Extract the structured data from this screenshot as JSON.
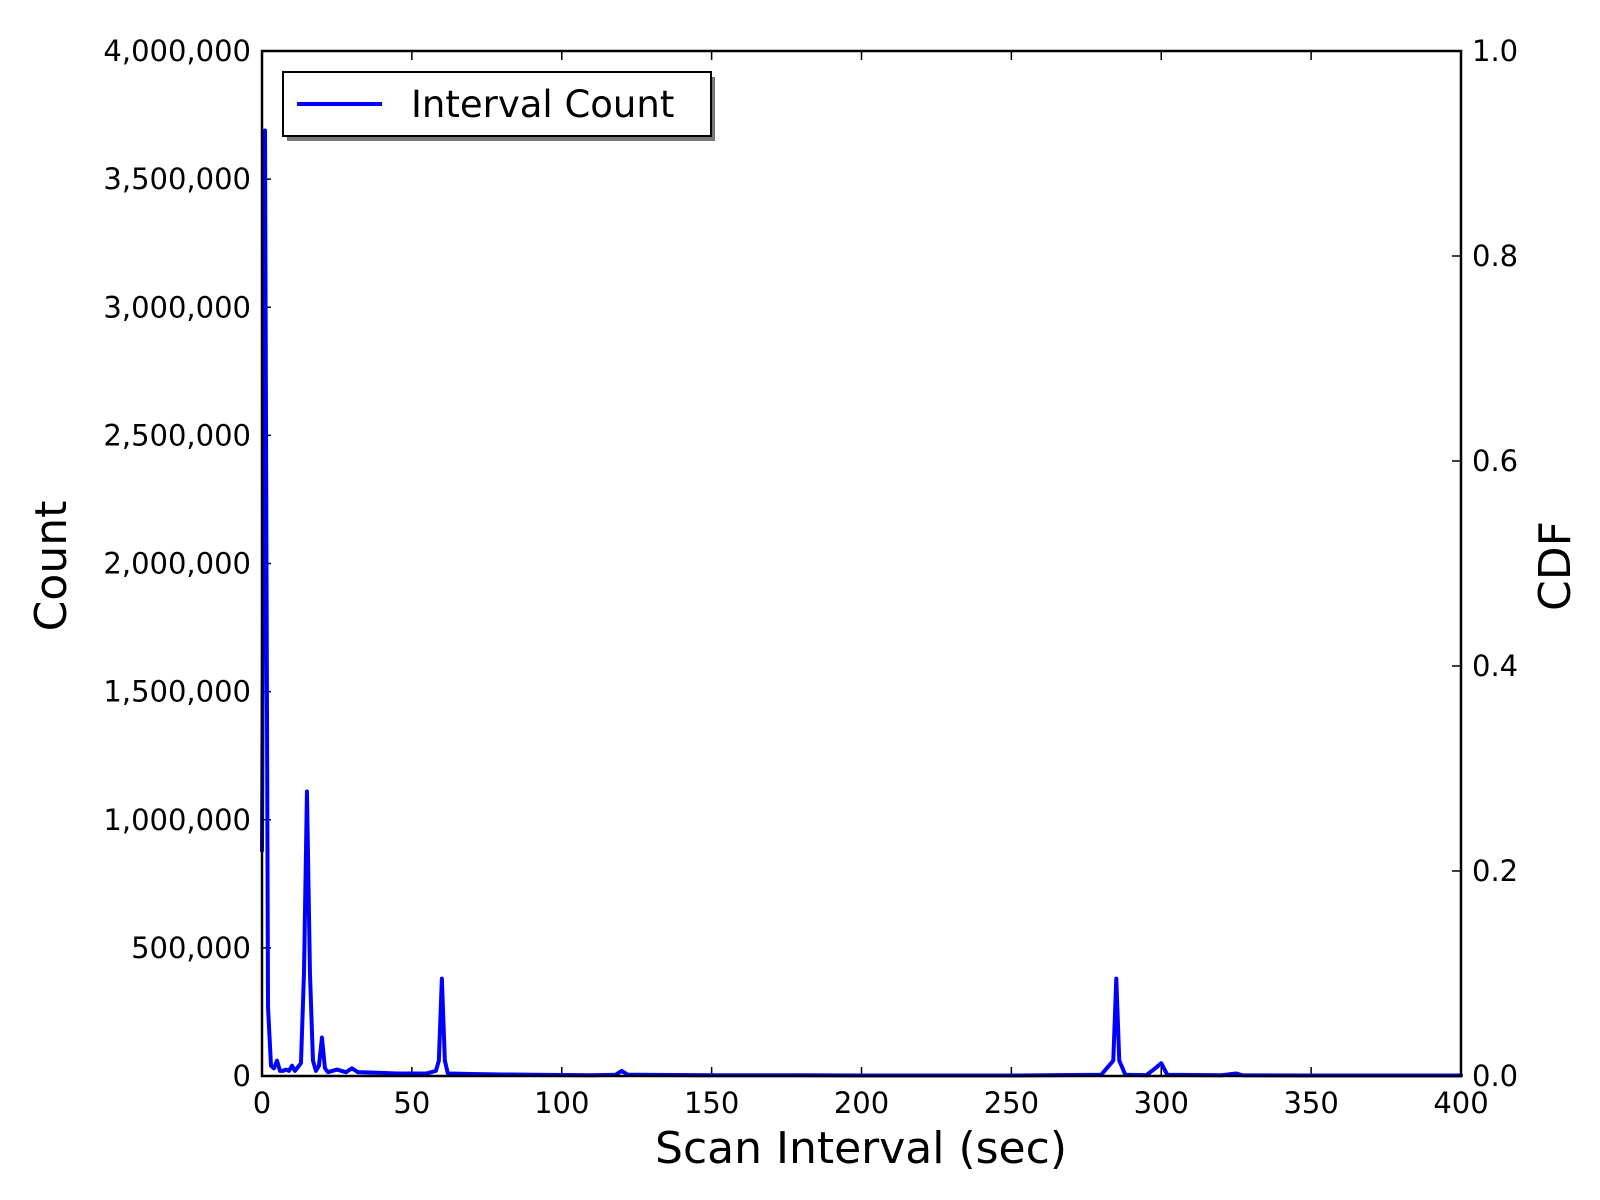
{
  "chart_data": {
    "type": "line",
    "title": "",
    "xlabel": "Scan Interval (sec)",
    "ylabel": "Count",
    "y2label": "CDF",
    "xlim": [
      0,
      400
    ],
    "ylim": [
      0,
      4000000
    ],
    "y2lim": [
      0.0,
      1.0
    ],
    "x_ticks": [
      "0",
      "50",
      "100",
      "150",
      "200",
      "250",
      "300",
      "350",
      "400"
    ],
    "y_ticks": [
      "0",
      "500,000",
      "1,000,000",
      "1,500,000",
      "2,000,000",
      "2,500,000",
      "3,000,000",
      "3,500,000",
      "4,000,000"
    ],
    "y2_ticks": [
      "0.0",
      "0.2",
      "0.4",
      "0.6",
      "0.8",
      "1.0"
    ],
    "grid": false,
    "legend": {
      "position": "top-left",
      "entries": [
        {
          "label": "Interval Count",
          "color": "#0000ff"
        }
      ]
    },
    "series": [
      {
        "name": "Interval Count",
        "color": "#0000ff",
        "axis": "left",
        "points": [
          [
            0,
            880000
          ],
          [
            1,
            3690000
          ],
          [
            2,
            270000
          ],
          [
            3,
            40000
          ],
          [
            4,
            30000
          ],
          [
            5,
            60000
          ],
          [
            6,
            20000
          ],
          [
            7,
            20000
          ],
          [
            8,
            25000
          ],
          [
            9,
            20000
          ],
          [
            10,
            40000
          ],
          [
            11,
            20000
          ],
          [
            12,
            35000
          ],
          [
            13,
            50000
          ],
          [
            14,
            400000
          ],
          [
            15,
            1110000
          ],
          [
            16,
            400000
          ],
          [
            17,
            60000
          ],
          [
            18,
            20000
          ],
          [
            19,
            40000
          ],
          [
            20,
            150000
          ],
          [
            21,
            30000
          ],
          [
            22,
            15000
          ],
          [
            25,
            25000
          ],
          [
            28,
            15000
          ],
          [
            30,
            30000
          ],
          [
            32,
            15000
          ],
          [
            40,
            12000
          ],
          [
            45,
            10000
          ],
          [
            55,
            10000
          ],
          [
            58,
            20000
          ],
          [
            59,
            60000
          ],
          [
            60,
            380000
          ],
          [
            61,
            60000
          ],
          [
            62,
            10000
          ],
          [
            70,
            8000
          ],
          [
            80,
            6000
          ],
          [
            90,
            5000
          ],
          [
            100,
            4000
          ],
          [
            110,
            3000
          ],
          [
            118,
            5000
          ],
          [
            120,
            20000
          ],
          [
            122,
            5000
          ],
          [
            150,
            3000
          ],
          [
            180,
            3000
          ],
          [
            200,
            2000
          ],
          [
            250,
            2000
          ],
          [
            280,
            5000
          ],
          [
            284,
            60000
          ],
          [
            285,
            380000
          ],
          [
            286,
            60000
          ],
          [
            288,
            5000
          ],
          [
            295,
            3000
          ],
          [
            298,
            30000
          ],
          [
            300,
            50000
          ],
          [
            302,
            5000
          ],
          [
            320,
            3000
          ],
          [
            325,
            10000
          ],
          [
            327,
            3000
          ],
          [
            350,
            2000
          ],
          [
            400,
            2000
          ]
        ]
      }
    ]
  }
}
